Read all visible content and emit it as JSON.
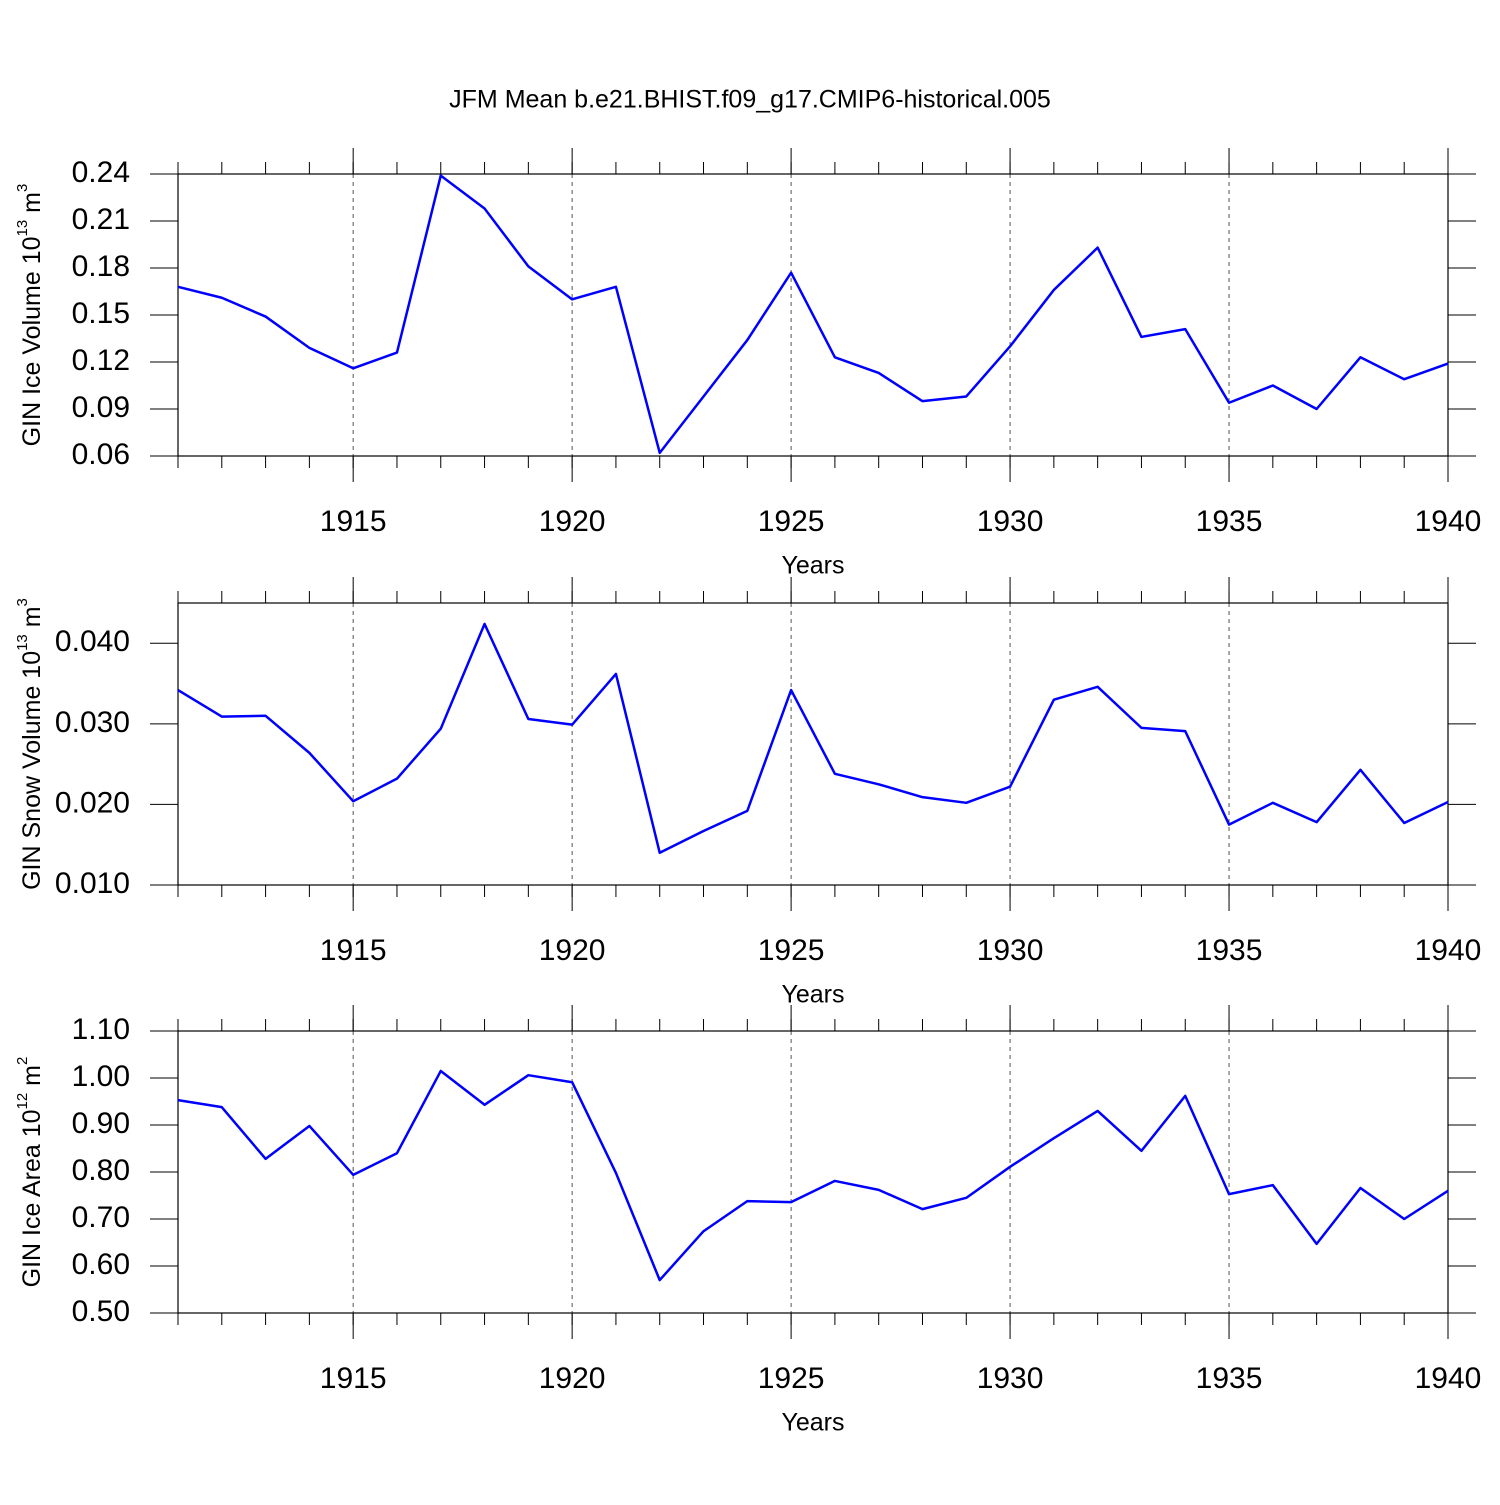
{
  "title": "JFM Mean b.e21.BHIST.f09_g17.CMIP6-historical.005",
  "chart_data": [
    {
      "type": "line",
      "x": [
        1911,
        1912,
        1913,
        1914,
        1915,
        1916,
        1917,
        1918,
        1919,
        1920,
        1921,
        1922,
        1923,
        1924,
        1925,
        1926,
        1927,
        1928,
        1929,
        1930,
        1931,
        1932,
        1933,
        1934,
        1935,
        1936,
        1937,
        1938,
        1939,
        1940
      ],
      "xlim": [
        1911,
        1940
      ],
      "xticks": [
        1915,
        1920,
        1925,
        1930,
        1935,
        1940
      ],
      "xlabel": "Years",
      "ylabel": [
        "GIN Ice Volume 10",
        "13",
        " m",
        "3"
      ],
      "ylim": [
        0.06,
        0.24
      ],
      "yticks": [
        0.06,
        0.09,
        0.12,
        0.15,
        0.18,
        0.21,
        0.24
      ],
      "grid": true,
      "series": [
        {
          "color": "#0000ff",
          "values": [
            0.168,
            0.161,
            0.149,
            0.129,
            0.116,
            0.126,
            0.239,
            0.218,
            0.181,
            0.16,
            0.168,
            0.062,
            0.098,
            0.134,
            0.177,
            0.123,
            0.113,
            0.095,
            0.098,
            0.13,
            0.166,
            0.193,
            0.136,
            0.141,
            0.094,
            0.105,
            0.09,
            0.123,
            0.109,
            0.119
          ]
        }
      ]
    },
    {
      "type": "line",
      "x": [
        1911,
        1912,
        1913,
        1914,
        1915,
        1916,
        1917,
        1918,
        1919,
        1920,
        1921,
        1922,
        1923,
        1924,
        1925,
        1926,
        1927,
        1928,
        1929,
        1930,
        1931,
        1932,
        1933,
        1934,
        1935,
        1936,
        1937,
        1938,
        1939,
        1940
      ],
      "xlim": [
        1911,
        1940
      ],
      "xticks": [
        1915,
        1920,
        1925,
        1930,
        1935,
        1940
      ],
      "xlabel": "Years",
      "ylabel": [
        "GIN Snow Volume 10",
        "13",
        " m",
        "3"
      ],
      "ylim": [
        0.01,
        0.045
      ],
      "yticks": [
        {
          "value": 0.01,
          "label": "0.010"
        },
        {
          "value": 0.02,
          "label": "0.020"
        },
        {
          "value": 0.03,
          "label": "0.030"
        },
        {
          "value": 0.04,
          "label": "0.040"
        }
      ],
      "grid": true,
      "series": [
        {
          "color": "#0000ff",
          "values": [
            0.0342,
            0.0309,
            0.031,
            0.0264,
            0.0204,
            0.0232,
            0.0294,
            0.0424,
            0.0306,
            0.0299,
            0.0362,
            0.014,
            0.0167,
            0.0192,
            0.0342,
            0.0238,
            0.0225,
            0.0209,
            0.0202,
            0.0222,
            0.033,
            0.0346,
            0.0295,
            0.0291,
            0.0175,
            0.0202,
            0.0178,
            0.0243,
            0.0177,
            0.0203
          ]
        }
      ]
    },
    {
      "type": "line",
      "x": [
        1911,
        1912,
        1913,
        1914,
        1915,
        1916,
        1917,
        1918,
        1919,
        1920,
        1921,
        1922,
        1923,
        1924,
        1925,
        1926,
        1927,
        1928,
        1929,
        1930,
        1931,
        1932,
        1933,
        1934,
        1935,
        1936,
        1937,
        1938,
        1939,
        1940
      ],
      "xlim": [
        1911,
        1940
      ],
      "xticks": [
        1915,
        1920,
        1925,
        1930,
        1935,
        1940
      ],
      "xlabel": "Years",
      "ylabel": [
        "GIN Ice Area 10",
        "12",
        " m",
        "2"
      ],
      "ylim": [
        0.5,
        1.1
      ],
      "yticks": [
        {
          "value": 0.5,
          "label": "0.50"
        },
        {
          "value": 0.6,
          "label": "0.60"
        },
        {
          "value": 0.7,
          "label": "0.70"
        },
        {
          "value": 0.8,
          "label": "0.80"
        },
        {
          "value": 0.9,
          "label": "0.90"
        },
        {
          "value": 1.0,
          "label": "1.00"
        },
        {
          "value": 1.1,
          "label": "1.10"
        }
      ],
      "grid": true,
      "series": [
        {
          "color": "#0000ff",
          "values": [
            0.953,
            0.938,
            0.828,
            0.898,
            0.794,
            0.84,
            1.015,
            0.943,
            1.006,
            0.991,
            0.798,
            0.57,
            0.674,
            0.738,
            0.736,
            0.781,
            0.762,
            0.721,
            0.745,
            0.811,
            0.872,
            0.93,
            0.845,
            0.962,
            0.753,
            0.772,
            0.647,
            0.766,
            0.7,
            0.76
          ]
        }
      ]
    }
  ]
}
